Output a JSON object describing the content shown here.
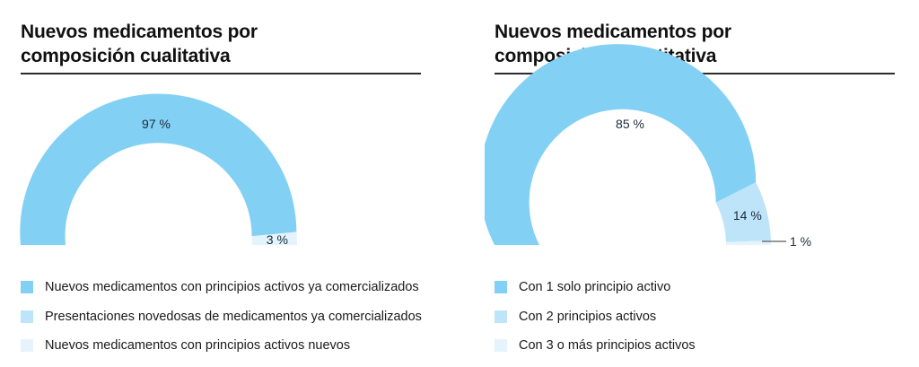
{
  "colors": {
    "series1": "#83d0f5",
    "series2": "#bde4f8",
    "series3": "#e4f3fc",
    "text": "#1a1a1a",
    "rule": "#2b2b2b"
  },
  "chart_data": [
    {
      "type": "pie",
      "subtype": "half-donut",
      "title": "Nuevos medicamentos por composición cualitativa",
      "categories": [
        "Nuevos medicamentos con principios activos ya comercializados",
        "Presentaciones novedosas de medicamentos ya comercializados",
        "Nuevos medicamentos con principios activos nuevos"
      ],
      "values": [
        97,
        0,
        3
      ],
      "unit": "%",
      "data_labels": [
        "97 %",
        "",
        "3 %"
      ],
      "legend_position": "bottom-left"
    },
    {
      "type": "pie",
      "subtype": "half-donut",
      "title": "Nuevos medicamentos por composición cuantitativa",
      "categories": [
        "Con 1 solo principio activo",
        "Con 2 principios activos",
        "Con 3 o más principios activos"
      ],
      "values": [
        85,
        14,
        1
      ],
      "unit": "%",
      "data_labels": [
        "85 %",
        "14 %",
        "1 %"
      ],
      "legend_position": "bottom-left"
    }
  ],
  "left": {
    "title_line1": "Nuevos medicamentos por",
    "title_line2": "composición cualitativa"
  },
  "right": {
    "title_line1": "Nuevos medicamentos por",
    "title_line2": "composición cuantitativa"
  }
}
